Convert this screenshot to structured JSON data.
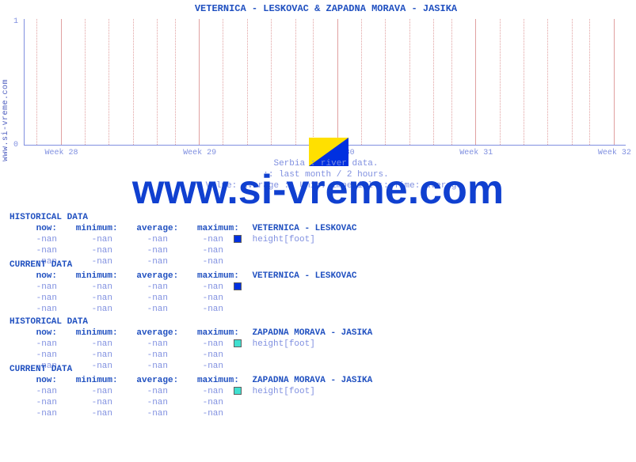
{
  "title": "VETERNICA -  LESKOVAC &  ZAPADNA MORAVA -  JASIKA",
  "side_label": "www.si-vreme.com",
  "watermark_text": "www.si-vreme.com",
  "chart": {
    "type": "line",
    "background_color": "#ffffff",
    "axis_color": "#8090e0",
    "grid_color": "#e0a0a0",
    "ylim": [
      0,
      1
    ],
    "yticks": [
      "0",
      "1"
    ],
    "xticks": [
      {
        "label": "Week 28",
        "pos_pct": 6,
        "major": true
      },
      {
        "label": "Week 29",
        "pos_pct": 29,
        "major": true
      },
      {
        "label": "Week 30",
        "pos_pct": 52,
        "major": true
      },
      {
        "label": "Week 31",
        "pos_pct": 75,
        "major": true
      },
      {
        "label": "Week 32",
        "pos_pct": 98,
        "major": true
      }
    ],
    "minor_gridlines_pct": [
      2,
      10,
      14,
      18,
      22,
      25,
      33,
      37,
      41,
      45,
      48,
      56,
      60,
      64,
      68,
      71,
      79,
      83,
      87,
      91,
      94
    ]
  },
  "logo": {
    "bg_color": "#ffe000",
    "fg_color": "#0030e0",
    "ref_dim_color": "#40c0c0"
  },
  "caption": {
    "line1": "Serbia : river data.",
    "line2": ":: last month / 2 hours.",
    "line3": ":: Value: average :: Unit: imperial :: Time: average"
  },
  "columns": {
    "now": "now:",
    "min": "minimum:",
    "avg": "average:",
    "max": "maximum:"
  },
  "nan": "-nan",
  "sections": [
    {
      "heading": "HISTORICAL DATA",
      "station": "VETERNICA -  LESKOVAC",
      "metric": "height[foot]",
      "swatch_color": "#0030e0",
      "rows": 3
    },
    {
      "heading": "CURRENT DATA",
      "station": "VETERNICA -  LESKOVAC",
      "metric": "",
      "swatch_color": "#0030e0",
      "rows": 3
    },
    {
      "heading": "HISTORICAL DATA",
      "station": "ZAPADNA MORAVA -  JASIKA",
      "metric": "height[foot]",
      "swatch_color": "#40e0d0",
      "rows": 3
    },
    {
      "heading": "CURRENT DATA",
      "station": "ZAPADNA MORAVA -  JASIKA",
      "metric": "height[foot]",
      "swatch_color": "#40e0d0",
      "rows": 3
    }
  ]
}
